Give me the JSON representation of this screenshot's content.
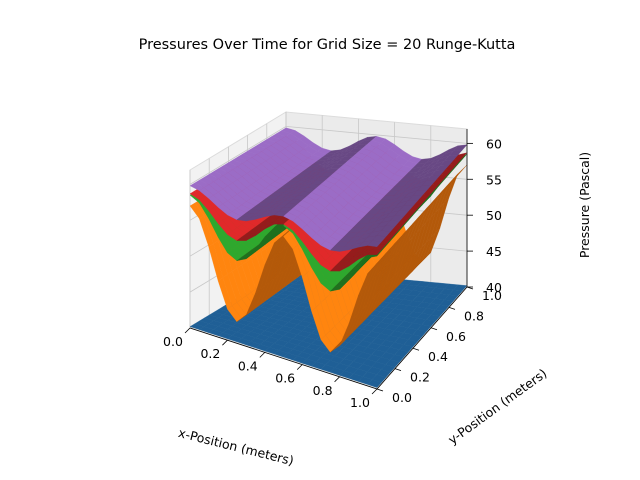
{
  "chart_data": {
    "type": "surface3d",
    "title": "Pressures Over Time for Grid Size = 20 Runge-Kutta",
    "xlabel": "x-Position (meters)",
    "ylabel": "y-Position (meters)",
    "zlabel": "Pressure (Pascal)",
    "xlim": [
      0.0,
      1.0
    ],
    "ylim": [
      0.0,
      1.0
    ],
    "zlim": [
      40,
      62
    ],
    "xticks": [
      "0.0",
      "0.2",
      "0.4",
      "0.6",
      "0.8",
      "1.0"
    ],
    "yticks": [
      "0.0",
      "0.2",
      "0.4",
      "0.6",
      "0.8",
      "1.0"
    ],
    "zticks": [
      "40",
      "45",
      "50",
      "55",
      "60"
    ],
    "grid": true,
    "grid_size": 20,
    "series": [
      {
        "color": "#1f5f96",
        "shape": "flat",
        "mean": 40.2,
        "amplitude": 0,
        "periods": 0
      },
      {
        "color": "#ff7f0e",
        "shape": "wave",
        "mean": 50,
        "amplitude": 7,
        "periods": 2
      },
      {
        "color": "#2ca02c",
        "shape": "wave",
        "mean": 55,
        "amplitude": 3.5,
        "periods": 2
      },
      {
        "color": "#d62728",
        "shape": "wave",
        "mean": 56.5,
        "amplitude": 2.2,
        "periods": 2
      },
      {
        "color": "#9467bd",
        "shape": "wave",
        "mean": 58.5,
        "amplitude": 1.3,
        "periods": 2
      }
    ]
  }
}
